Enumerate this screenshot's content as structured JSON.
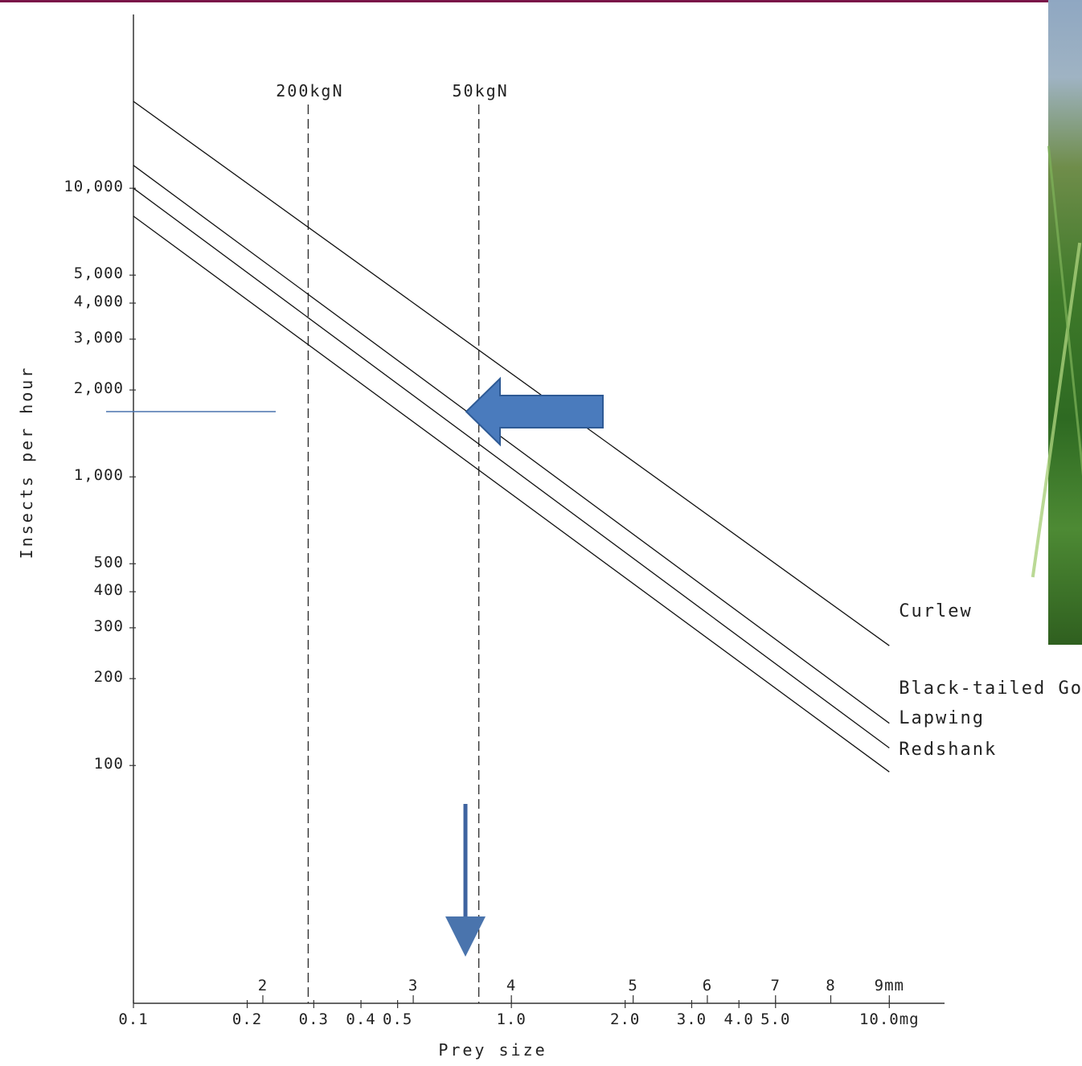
{
  "chart_data": {
    "type": "line",
    "title": "",
    "xlabel": "Prey size",
    "ylabel": "Insects per hour",
    "y_scale": "log",
    "x_scale": "log",
    "xlim": [
      0.1,
      14
    ],
    "ylim": [
      15,
      40000
    ],
    "y_ticks": [
      {
        "value": 10000,
        "label": "10,000"
      },
      {
        "value": 5000,
        "label": "5,000"
      },
      {
        "value": 4000,
        "label": "4,000"
      },
      {
        "value": 3000,
        "label": "3,000"
      },
      {
        "value": 2000,
        "label": "2,000"
      },
      {
        "value": 1000,
        "label": "1,000"
      },
      {
        "value": 500,
        "label": "500"
      },
      {
        "value": 400,
        "label": "400"
      },
      {
        "value": 300,
        "label": "300"
      },
      {
        "value": 200,
        "label": "200"
      },
      {
        "value": 100,
        "label": "100"
      }
    ],
    "x_ticks_mg": [
      {
        "value": 0.1,
        "label": "0.1"
      },
      {
        "value": 0.2,
        "label": "0.2"
      },
      {
        "value": 0.3,
        "label": "0.3"
      },
      {
        "value": 0.4,
        "label": "0.4"
      },
      {
        "value": 0.5,
        "label": "0.5"
      },
      {
        "value": 1.0,
        "label": "1.0"
      },
      {
        "value": 2.0,
        "label": "2.0"
      },
      {
        "value": 3.0,
        "label": "3.0"
      },
      {
        "value": 4.0,
        "label": "4.0"
      },
      {
        "value": 5.0,
        "label": "5.0"
      },
      {
        "value": 10.0,
        "label": "10.0mg"
      }
    ],
    "x_ticks_mm": [
      {
        "value": 0.22,
        "label": "2"
      },
      {
        "value": 0.55,
        "label": "3"
      },
      {
        "value": 1.0,
        "label": "4"
      },
      {
        "value": 2.1,
        "label": "5"
      },
      {
        "value": 3.3,
        "label": "6"
      },
      {
        "value": 5.0,
        "label": "7"
      },
      {
        "value": 7.0,
        "label": "8"
      },
      {
        "value": 10.0,
        "label": "9mm"
      }
    ],
    "reference_lines": [
      {
        "x": 0.29,
        "label": "200kgN"
      },
      {
        "x": 0.82,
        "label": "50kgN"
      }
    ],
    "series": [
      {
        "name": "Curlew",
        "x": [
          0.1,
          10.0
        ],
        "y": [
          20000,
          260
        ]
      },
      {
        "name": "Black-tailed Godwit",
        "x": [
          0.1,
          10.0
        ],
        "y": [
          12000,
          140
        ]
      },
      {
        "name": "Lapwing",
        "x": [
          0.1,
          10.0
        ],
        "y": [
          10000,
          115
        ]
      },
      {
        "name": "Redshank",
        "x": [
          0.1,
          10.0
        ],
        "y": [
          8000,
          95
        ]
      }
    ],
    "grid": false,
    "legend": "inline-right"
  }
}
